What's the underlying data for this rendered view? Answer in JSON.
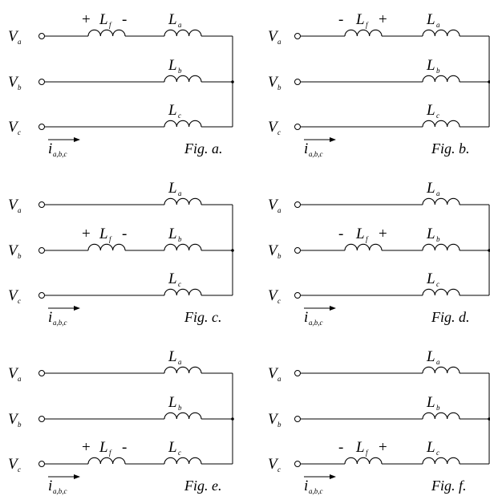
{
  "symbols": {
    "V": "V",
    "L": "L",
    "i": "i",
    "phase_subs": [
      "a",
      "b",
      "c"
    ],
    "filter_sub": "f",
    "current_sub": "a,b,c"
  },
  "figures": [
    {
      "caption": "Fig. a.",
      "filter_phase": 0,
      "left_sign": "+",
      "right_sign": "-"
    },
    {
      "caption": "Fig. b.",
      "filter_phase": 0,
      "left_sign": "-",
      "right_sign": "+"
    },
    {
      "caption": "Fig. c.",
      "filter_phase": 1,
      "left_sign": "+",
      "right_sign": "-"
    },
    {
      "caption": "Fig. d.",
      "filter_phase": 1,
      "left_sign": "-",
      "right_sign": "+"
    },
    {
      "caption": "Fig. e.",
      "filter_phase": 2,
      "left_sign": "+",
      "right_sign": "-"
    },
    {
      "caption": "Fig. f.",
      "filter_phase": 2,
      "left_sign": "-",
      "right_sign": "+"
    }
  ]
}
